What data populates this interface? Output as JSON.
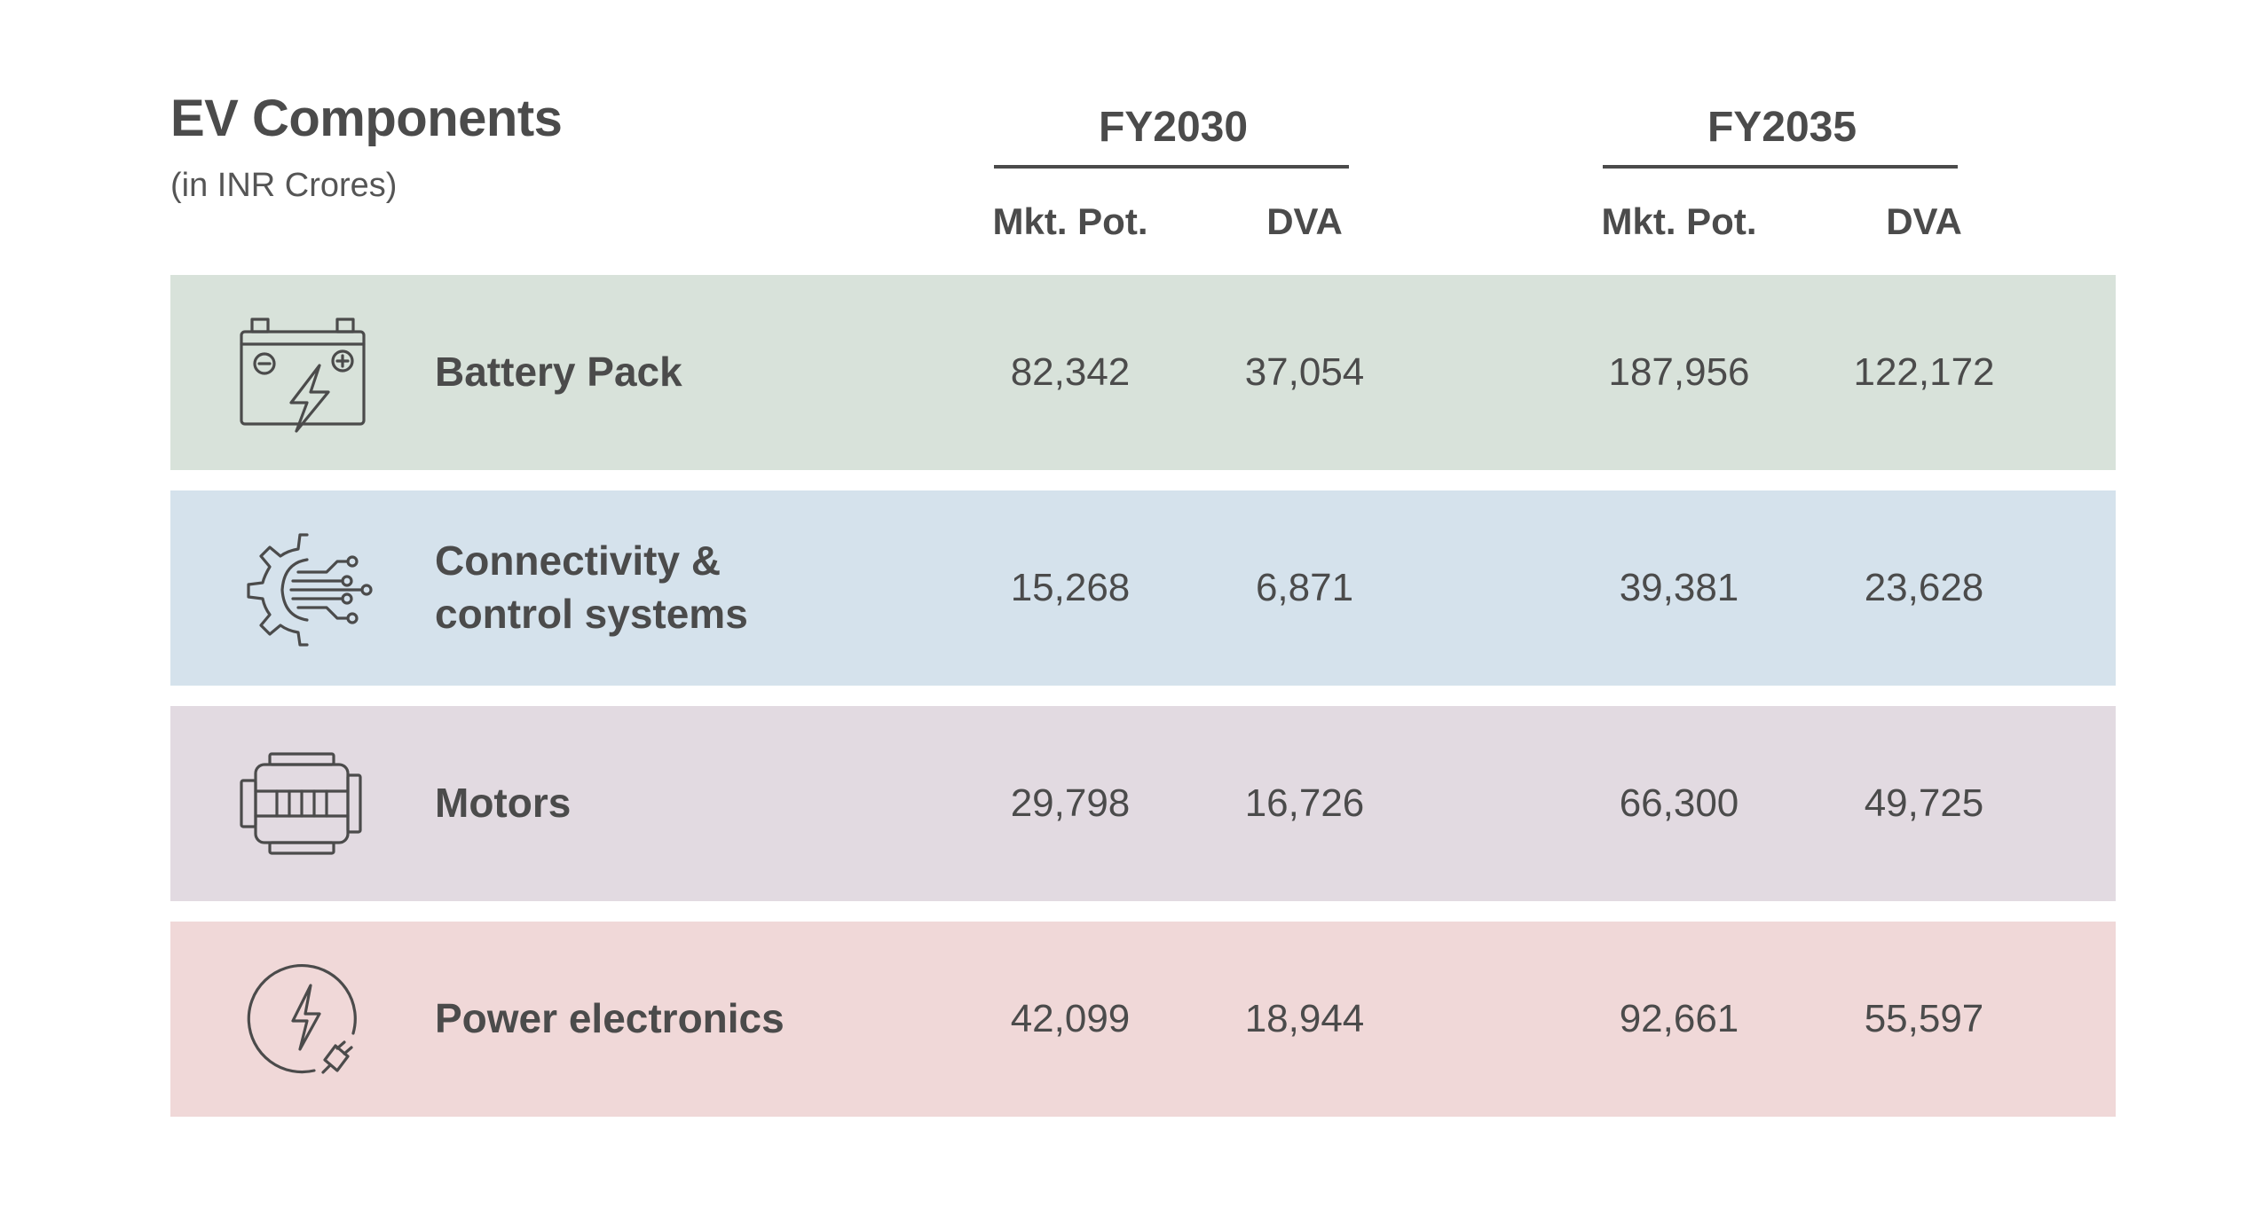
{
  "header": {
    "title": "EV Components",
    "subtitle": "(in INR Crores)",
    "years": [
      "FY2030",
      "FY2035"
    ],
    "columns": [
      "Mkt. Pot.",
      "DVA",
      "Mkt. Pot.",
      "DVA"
    ]
  },
  "rows": [
    {
      "label_line1": "Battery Pack",
      "label_line2": "",
      "icon": "battery-icon",
      "color": "#d8e2da",
      "fy2030_mkt": "82,342",
      "fy2030_dva": "37,054",
      "fy2035_mkt": "187,956",
      "fy2035_dva": "122,172"
    },
    {
      "label_line1": "Connectivity &",
      "label_line2": "control systems",
      "icon": "gear-circuit-icon",
      "color": "#d5e2ec",
      "fy2030_mkt": "15,268",
      "fy2030_dva": "6,871",
      "fy2035_mkt": "39,381",
      "fy2035_dva": "23,628"
    },
    {
      "label_line1": "Motors",
      "label_line2": "",
      "icon": "motor-icon",
      "color": "#e2dae1",
      "fy2030_mkt": "29,798",
      "fy2030_dva": "16,726",
      "fy2035_mkt": "66,300",
      "fy2035_dva": "49,725"
    },
    {
      "label_line1": "Power electronics",
      "label_line2": "",
      "icon": "power-plug-icon",
      "color": "#f0d8d8",
      "fy2030_mkt": "42,099",
      "fy2030_dva": "18,944",
      "fy2035_mkt": "92,661",
      "fy2035_dva": "55,597"
    }
  ]
}
